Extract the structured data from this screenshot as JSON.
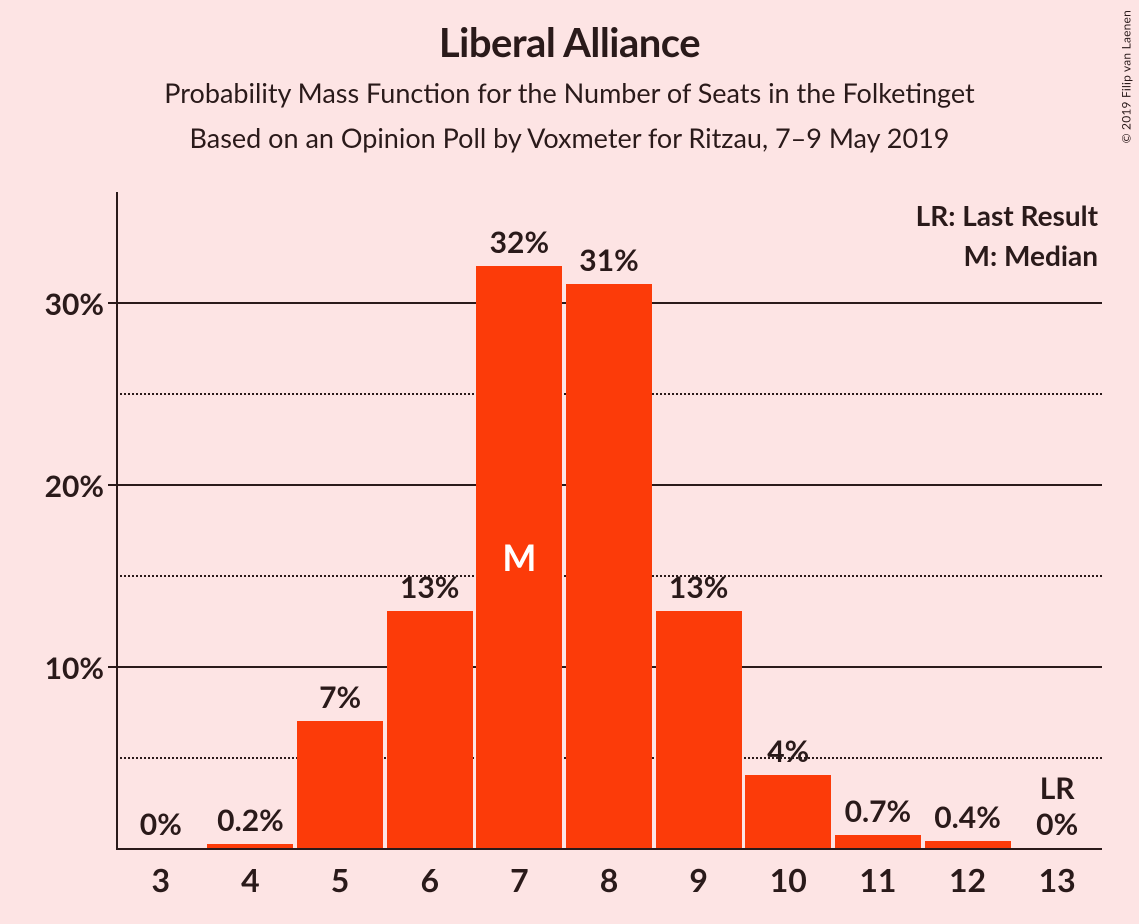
{
  "background_color": "#fde4e4",
  "text_color": "#2a1a1a",
  "copyright": "© 2019 Filip van Laenen",
  "title": "Liberal Alliance",
  "subtitle1": "Probability Mass Function for the Number of Seats in the Folketinget",
  "subtitle2": "Based on an Opinion Poll by Voxmeter for Ritzau, 7–9 May 2019",
  "legend": {
    "lr": "LR: Last Result",
    "m": "M: Median"
  },
  "chart": {
    "type": "bar",
    "bar_color": "#fc3b09",
    "median_marker_color": "#ffffff",
    "grid_major_style": "solid",
    "grid_minor_style": "dotted",
    "grid_color": "#2a1a1a",
    "y": {
      "min": 0,
      "max": 32,
      "ticks_major": [
        10,
        20,
        30
      ],
      "ticks_minor": [
        5,
        15,
        25
      ],
      "label_suffix": "%"
    },
    "x": {
      "categories": [
        3,
        4,
        5,
        6,
        7,
        8,
        9,
        10,
        11,
        12,
        13
      ]
    },
    "bars": [
      {
        "x": 3,
        "value": 0,
        "label": "0%"
      },
      {
        "x": 4,
        "value": 0.2,
        "label": "0.2%"
      },
      {
        "x": 5,
        "value": 7,
        "label": "7%"
      },
      {
        "x": 6,
        "value": 13,
        "label": "13%"
      },
      {
        "x": 7,
        "value": 32,
        "label": "32%",
        "is_median": true,
        "median_text": "M"
      },
      {
        "x": 8,
        "value": 31,
        "label": "31%"
      },
      {
        "x": 9,
        "value": 13,
        "label": "13%"
      },
      {
        "x": 10,
        "value": 4,
        "label": "4%"
      },
      {
        "x": 11,
        "value": 0.7,
        "label": "0.7%"
      },
      {
        "x": 12,
        "value": 0.4,
        "label": "0.4%"
      },
      {
        "x": 13,
        "value": 0,
        "label": "0%",
        "is_last_result": true,
        "lr_text": "LR"
      }
    ],
    "bar_width_ratio": 0.96
  }
}
